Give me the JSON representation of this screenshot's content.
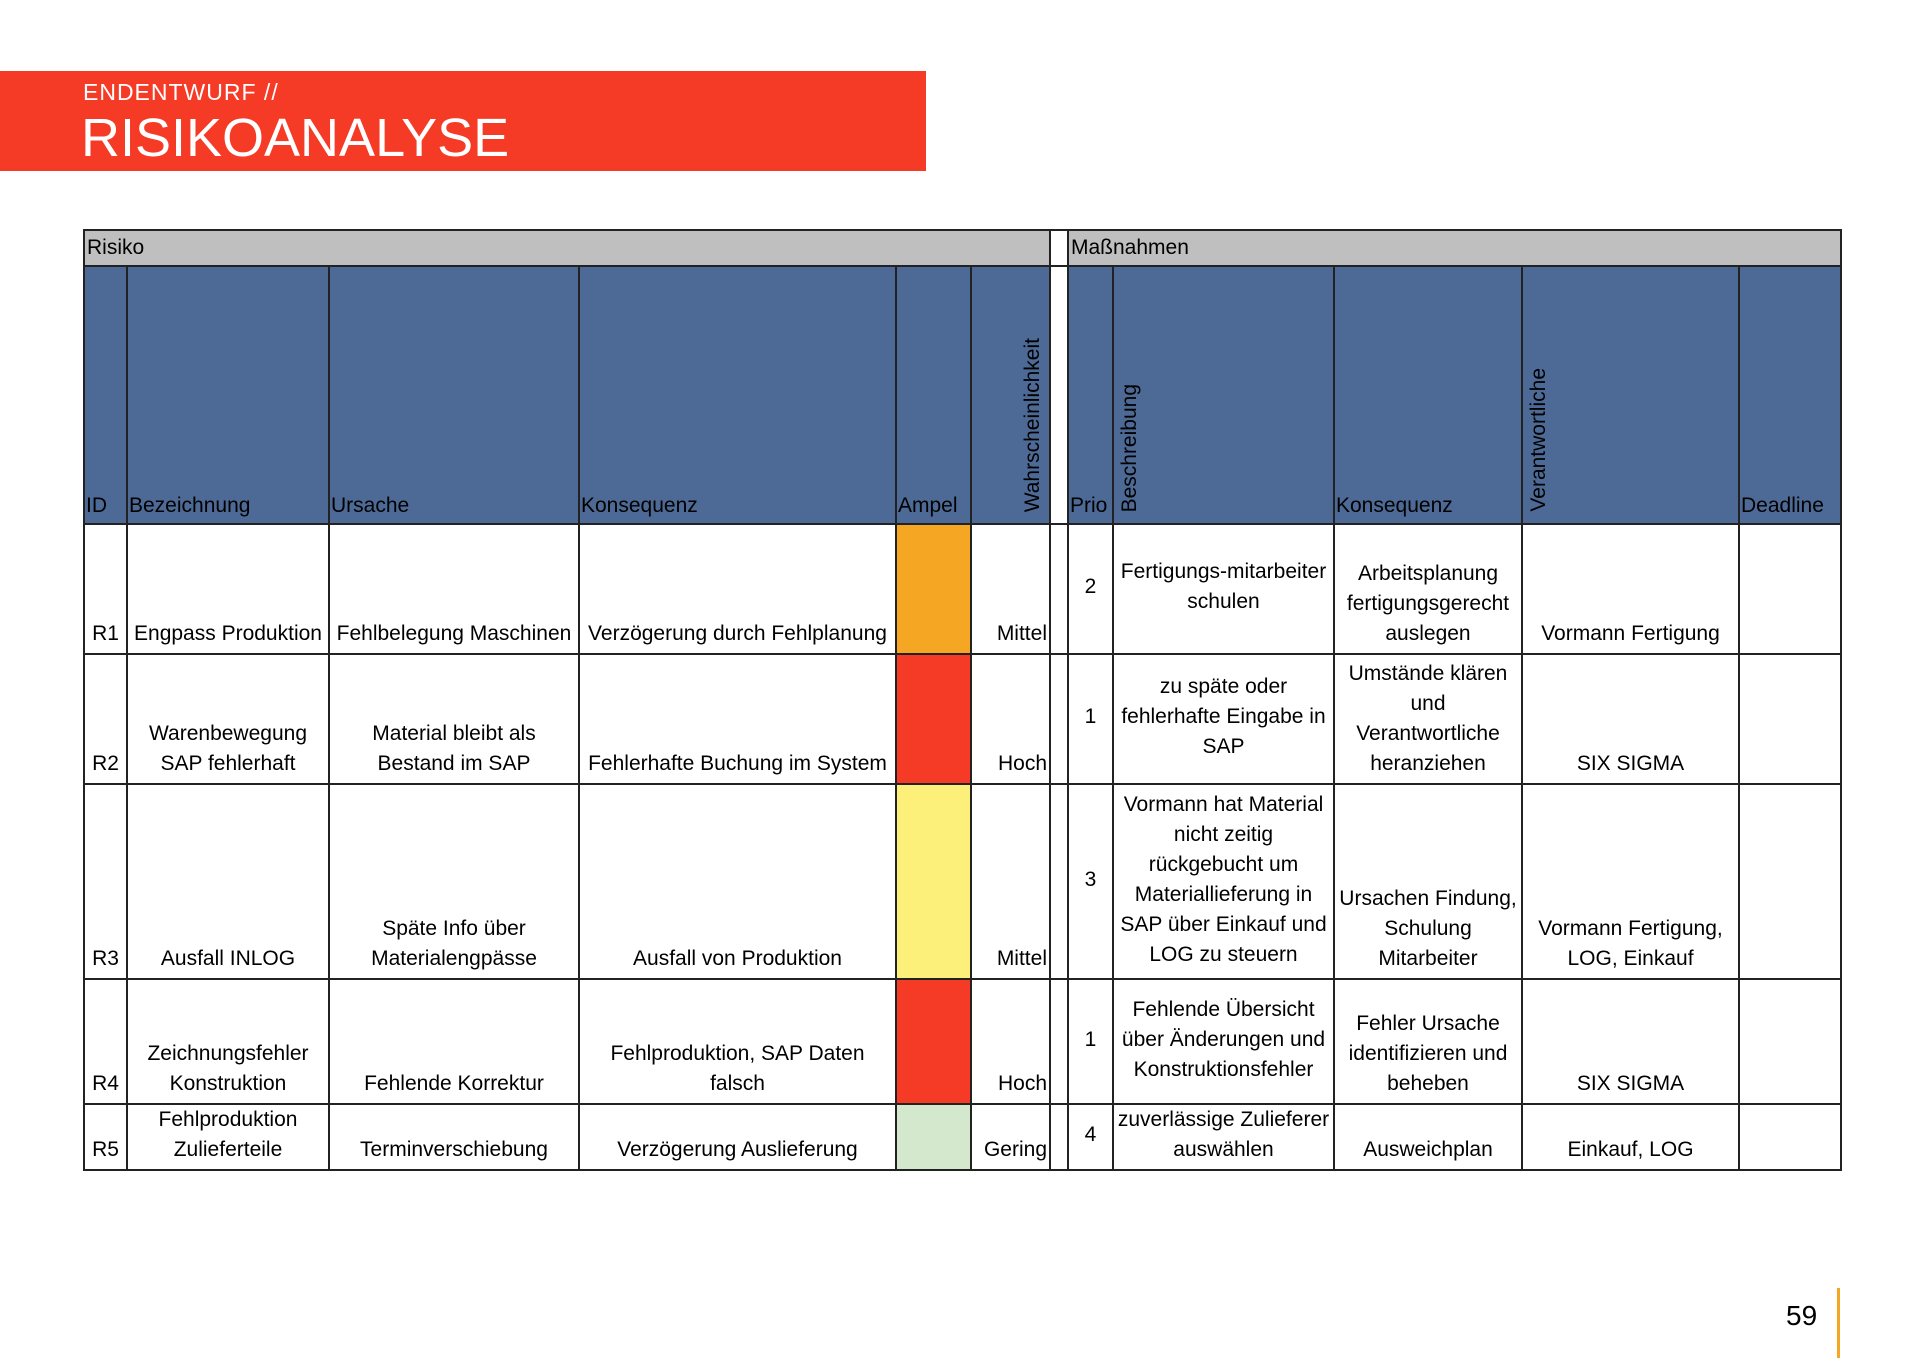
{
  "header": {
    "kicker": "ENDENTWURF //",
    "title": "RISIKOANALYSE"
  },
  "table": {
    "groups": [
      "Risiko",
      "Maßnahmen"
    ],
    "columns": [
      "ID",
      "Bezeichnung",
      "Ursache",
      "Konsequenz",
      "Ampel",
      "Wahrscheinlichkeit",
      "Prio",
      "Beschreibung",
      "Konsequenz",
      "Verantwortliche",
      "Deadline"
    ],
    "rows": [
      {
        "id": "R1",
        "bezeichnung": "Engpass Produktion",
        "ursache": "Fehlbelegung Maschinen",
        "konsequenz": "Verzögerung durch Fehlplanung",
        "ampel": "#f5a623",
        "wahrscheinlichkeit": "Mittel",
        "prio": 2,
        "beschreibung": "Fertigungs-mitarbeiter schulen",
        "massnahme": "Arbeitsplanung fertigungsgerecht auslegen",
        "verantwortliche": "Vormann Fertigung"
      },
      {
        "id": "R2",
        "bezeichnung": "Warenbewegung SAP fehlerhaft",
        "ursache": "Material bleibt als Bestand im SAP",
        "konsequenz": "Fehlerhafte Buchung im System",
        "ampel": "#f53a25",
        "wahrscheinlichkeit": "Hoch",
        "prio": 1,
        "beschreibung": "zu späte oder fehlerhafte Eingabe in SAP",
        "massnahme": "Umstände klären und Verantwortliche heranziehen",
        "verantwortliche": "SIX SIGMA"
      },
      {
        "id": "R3",
        "bezeichnung": "Ausfall INLOG",
        "ursache": "Späte Info über Materialengpässe",
        "konsequenz": "Ausfall von Produktion",
        "ampel": "#fdf07a",
        "wahrscheinlichkeit": "Mittel",
        "prio": 3,
        "beschreibung": "Vormann hat Material nicht zeitig rückgebucht um Materiallieferung in SAP über Einkauf und LOG zu steuern",
        "massnahme": "Ursachen Findung, Schulung Mitarbeiter",
        "verantwortliche": "Vormann Fertigung, LOG, Einkauf"
      },
      {
        "id": "R4",
        "bezeichnung": "Zeichnungsfehler Konstruktion",
        "ursache": "Fehlende Korrektur",
        "konsequenz": "Fehlproduktion, SAP Daten falsch",
        "ampel": "#f53a25",
        "wahrscheinlichkeit": "Hoch",
        "prio": 1,
        "beschreibung": "Fehlende Übersicht über Änderungen und Konstruktionsfehler",
        "massnahme": "Fehler Ursache identifizieren und beheben",
        "verantwortliche": "SIX SIGMA"
      },
      {
        "id": "R5",
        "bezeichnung": "Fehlproduktion Zulieferteile",
        "ursache": "Terminverschiebung",
        "konsequenz": "Verzögerung Auslieferung",
        "ampel": "#d3e8cc",
        "wahrscheinlichkeit": "Gering",
        "prio": 4,
        "beschreibung": "zuverlässige Zulieferer auswählen",
        "massnahme": "Ausweichplan",
        "verantwortliche": "Einkauf, LOG"
      }
    ]
  },
  "page_number": "59"
}
